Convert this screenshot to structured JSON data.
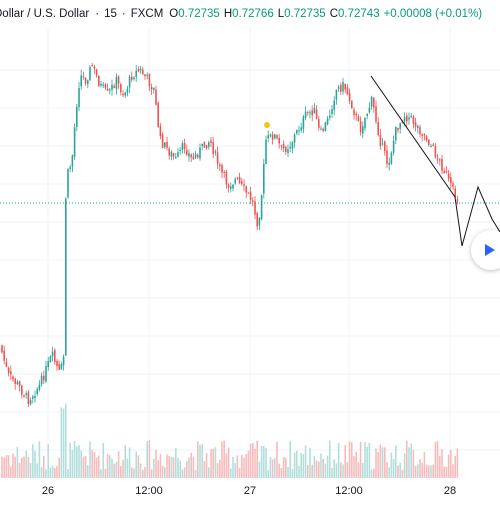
{
  "header": {
    "symbol": "Dollar / U.S. Dollar",
    "separator1": "·",
    "interval": "15",
    "separator2": "·",
    "exchange": "FXCM",
    "open_label": "O",
    "open": "0.72735",
    "high_label": "H",
    "high": "0.72766",
    "low_label": "L",
    "low": "0.72735",
    "close_label": "C",
    "close": "0.72743",
    "change": "+0.00008 (+0.01%)"
  },
  "x_labels": [
    "26",
    "12:00",
    "27",
    "12:00",
    "28"
  ],
  "colors": {
    "up": "#26a69a",
    "down": "#ef5350",
    "grid": "#f0f3fa",
    "price_line": "#26a69a",
    "drawing": "#131722",
    "marker": "#f5c518",
    "play_button": "#2962ff"
  },
  "controls": {
    "play_button_icon": "play-icon"
  }
}
